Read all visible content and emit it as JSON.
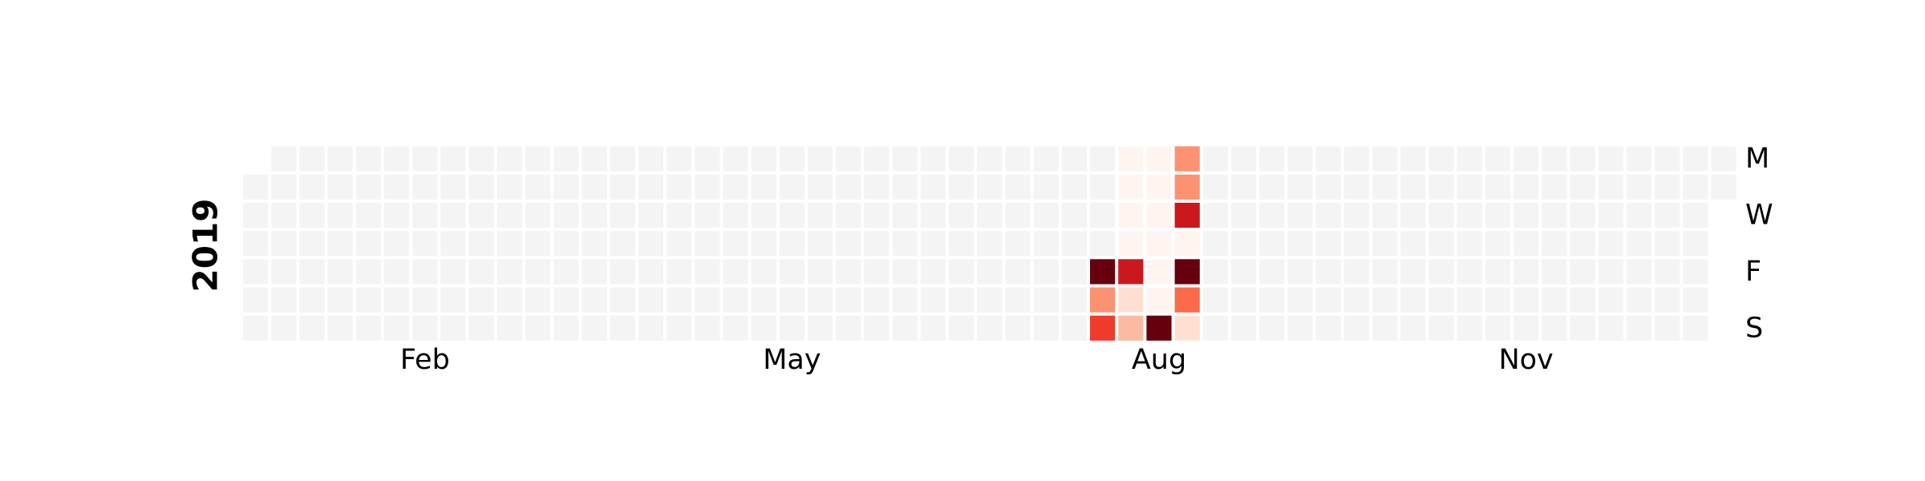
{
  "chart_data": {
    "type": "heatmap",
    "year": "2019",
    "month_labels": [
      {
        "label": "Feb",
        "month": 2
      },
      {
        "label": "May",
        "month": 5
      },
      {
        "label": "Aug",
        "month": 8
      },
      {
        "label": "Nov",
        "month": 11
      }
    ],
    "weekday_labels": [
      {
        "label": "M",
        "weekday": 0
      },
      {
        "label": "W",
        "weekday": 2
      },
      {
        "label": "F",
        "weekday": 4
      },
      {
        "label": "S",
        "weekday": 6
      }
    ],
    "empty_color": "#f4f4f4",
    "colormap": "Reds",
    "colors": {
      "0": "#fff5f0",
      "1": "#fee0d2",
      "2": "#fcbba1",
      "3": "#fc9272",
      "4": "#fb6a4a",
      "5": "#ef3b2c",
      "6": "#cb181d",
      "7": "#a50f15",
      "8": "#67000d"
    },
    "values": [
      {
        "date": "2019-08-02",
        "value": 8
      },
      {
        "date": "2019-08-03",
        "value": 3
      },
      {
        "date": "2019-08-04",
        "value": 5
      },
      {
        "date": "2019-08-05",
        "value": 0
      },
      {
        "date": "2019-08-06",
        "value": 0
      },
      {
        "date": "2019-08-07",
        "value": 0
      },
      {
        "date": "2019-08-08",
        "value": 0
      },
      {
        "date": "2019-08-09",
        "value": 6
      },
      {
        "date": "2019-08-10",
        "value": 1
      },
      {
        "date": "2019-08-11",
        "value": 2
      },
      {
        "date": "2019-08-12",
        "value": 0
      },
      {
        "date": "2019-08-13",
        "value": 0
      },
      {
        "date": "2019-08-14",
        "value": 0
      },
      {
        "date": "2019-08-15",
        "value": 0
      },
      {
        "date": "2019-08-16",
        "value": 0
      },
      {
        "date": "2019-08-17",
        "value": 0
      },
      {
        "date": "2019-08-18",
        "value": 8
      },
      {
        "date": "2019-08-19",
        "value": 3
      },
      {
        "date": "2019-08-20",
        "value": 3
      },
      {
        "date": "2019-08-21",
        "value": 6
      },
      {
        "date": "2019-08-22",
        "value": 0
      },
      {
        "date": "2019-08-23",
        "value": 8
      },
      {
        "date": "2019-08-24",
        "value": 4
      },
      {
        "date": "2019-08-25",
        "value": 1
      }
    ]
  }
}
